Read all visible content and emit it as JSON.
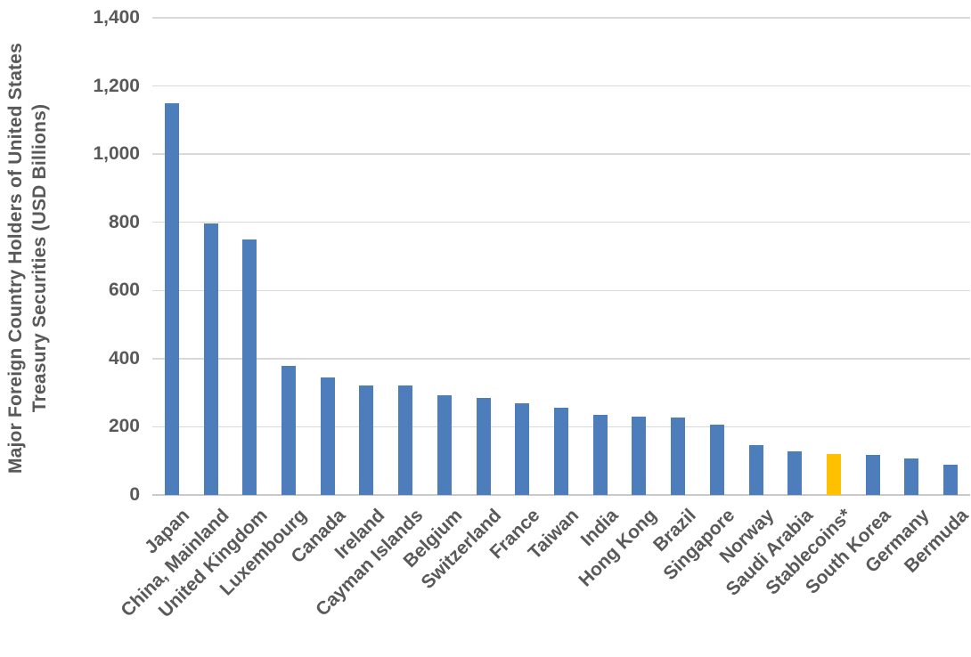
{
  "chart_data": {
    "type": "bar",
    "title": "",
    "y_axis_title_line1": "Major Foreign Country Holders of United States",
    "y_axis_title_line2": "Treasury Securities  (USD Billions)",
    "categories": [
      "Japan",
      "China, Mainland",
      "United Kingdom",
      "Luxembourg",
      "Canada",
      "Ireland",
      "Cayman Islands",
      "Belgium",
      "Switzerland",
      "France",
      "Taiwan",
      "India",
      "Hong Kong",
      "Brazil",
      "Singapore",
      "Norway",
      "Saudi Arabia",
      "Stablecoins*",
      "South Korea",
      "Germany",
      "Bermuda"
    ],
    "values": [
      1150,
      797,
      750,
      378,
      344,
      322,
      320,
      293,
      285,
      268,
      256,
      235,
      230,
      227,
      206,
      145,
      128,
      120,
      118,
      107,
      88
    ],
    "highlight_category": "Stablecoins*",
    "ylim": [
      0,
      1400
    ],
    "ytick_labels": [
      "1,400",
      "1,200",
      "1,000",
      "800",
      "600",
      "400",
      "200",
      "0"
    ],
    "xlabel": "",
    "ylabel": "Major Foreign Country Holders of United States Treasury Securities (USD Billions)",
    "grid": true,
    "legend": false,
    "x_label_rotation_deg": -45,
    "colors": {
      "bar": "#4d7ebb",
      "highlight_bar": "#ffc000",
      "grid_line": "#d9d9d9",
      "axis_line": "#c9c9c9",
      "text": "#595959",
      "background": "#ffffff"
    }
  }
}
